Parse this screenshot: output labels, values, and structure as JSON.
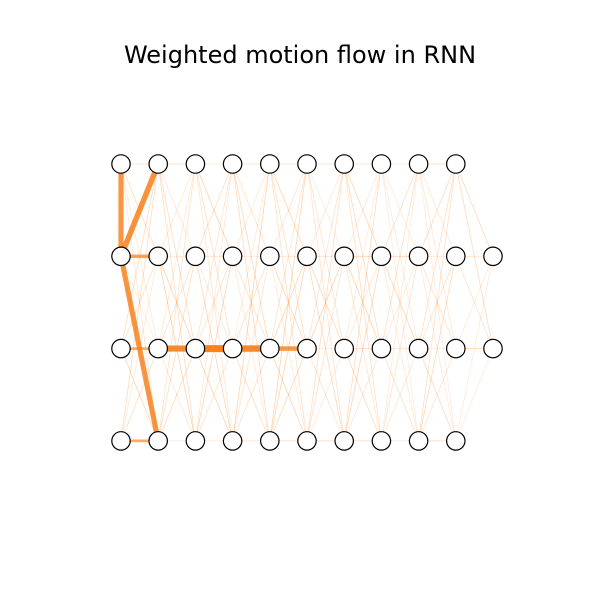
{
  "title": "Weighted motion flow in RNN",
  "colors": {
    "edge": "#ff8c2a",
    "edge_strong": "#f57c14",
    "node_fill": "#ffffff",
    "node_stroke": "#000000"
  },
  "graph": {
    "columns": 11,
    "layers": 4,
    "nodes": [
      {
        "col": 0,
        "layer": 0
      },
      {
        "col": 1,
        "layer": 0
      },
      {
        "col": 2,
        "layer": 0
      },
      {
        "col": 3,
        "layer": 0
      },
      {
        "col": 4,
        "layer": 0
      },
      {
        "col": 5,
        "layer": 0
      },
      {
        "col": 6,
        "layer": 0
      },
      {
        "col": 7,
        "layer": 0
      },
      {
        "col": 8,
        "layer": 0
      },
      {
        "col": 9,
        "layer": 0
      },
      {
        "col": 0,
        "layer": 1
      },
      {
        "col": 1,
        "layer": 1
      },
      {
        "col": 2,
        "layer": 1
      },
      {
        "col": 3,
        "layer": 1
      },
      {
        "col": 4,
        "layer": 1
      },
      {
        "col": 5,
        "layer": 1
      },
      {
        "col": 6,
        "layer": 1
      },
      {
        "col": 7,
        "layer": 1
      },
      {
        "col": 8,
        "layer": 1
      },
      {
        "col": 9,
        "layer": 1
      },
      {
        "col": 10,
        "layer": 1
      },
      {
        "col": 0,
        "layer": 2
      },
      {
        "col": 1,
        "layer": 2
      },
      {
        "col": 2,
        "layer": 2
      },
      {
        "col": 3,
        "layer": 2
      },
      {
        "col": 4,
        "layer": 2
      },
      {
        "col": 5,
        "layer": 2
      },
      {
        "col": 6,
        "layer": 2
      },
      {
        "col": 7,
        "layer": 2
      },
      {
        "col": 8,
        "layer": 2
      },
      {
        "col": 9,
        "layer": 2
      },
      {
        "col": 10,
        "layer": 2
      },
      {
        "col": 0,
        "layer": 3
      },
      {
        "col": 1,
        "layer": 3
      },
      {
        "col": 2,
        "layer": 3
      },
      {
        "col": 3,
        "layer": 3
      },
      {
        "col": 4,
        "layer": 3
      },
      {
        "col": 5,
        "layer": 3
      },
      {
        "col": 6,
        "layer": 3
      },
      {
        "col": 7,
        "layer": 3
      },
      {
        "col": 8,
        "layer": 3
      },
      {
        "col": 9,
        "layer": 3
      }
    ],
    "strong_edges": [
      {
        "from": [
          0,
          0
        ],
        "to": [
          0,
          1
        ],
        "weight": 0.7
      },
      {
        "from": [
          0,
          1
        ],
        "to": [
          1,
          0
        ],
        "weight": 0.75
      },
      {
        "from": [
          0,
          1
        ],
        "to": [
          1,
          3
        ],
        "weight": 0.7
      },
      {
        "from": [
          0,
          1
        ],
        "to": [
          1,
          1
        ],
        "weight": 0.45
      },
      {
        "from": [
          1,
          2
        ],
        "to": [
          2,
          2
        ],
        "weight": 0.85
      },
      {
        "from": [
          2,
          2
        ],
        "to": [
          3,
          2
        ],
        "weight": 1.0
      },
      {
        "from": [
          3,
          2
        ],
        "to": [
          4,
          2
        ],
        "weight": 0.9
      },
      {
        "from": [
          4,
          2
        ],
        "to": [
          5,
          2
        ],
        "weight": 0.6
      },
      {
        "from": [
          0,
          2
        ],
        "to": [
          1,
          2
        ],
        "weight": 0.3
      },
      {
        "from": [
          0,
          3
        ],
        "to": [
          1,
          3
        ],
        "weight": 0.3
      }
    ]
  }
}
